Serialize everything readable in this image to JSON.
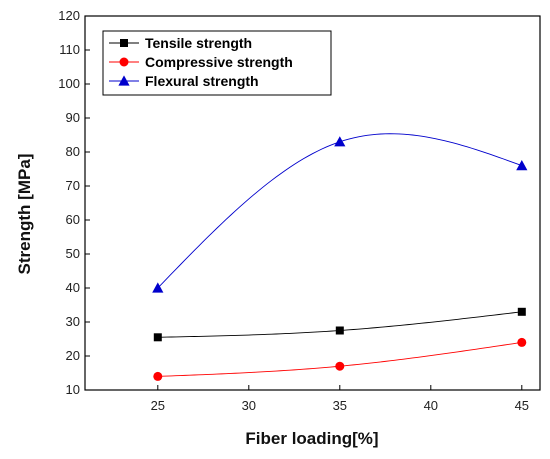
{
  "chart_data": {
    "type": "line",
    "title": "",
    "xlabel": "Fiber loading[%]",
    "ylabel": "Strength [MPa]",
    "xlim": [
      21,
      46
    ],
    "ylim": [
      10,
      120
    ],
    "xticks": [
      25,
      30,
      35,
      40,
      45
    ],
    "yticks": [
      10,
      20,
      30,
      40,
      50,
      60,
      70,
      80,
      90,
      100,
      110,
      120
    ],
    "x": [
      25,
      35,
      45
    ],
    "series": [
      {
        "name": "Tensile strength",
        "values": [
          25.5,
          27.5,
          33
        ],
        "color": "#000000",
        "marker": "square"
      },
      {
        "name": "Compressive strength",
        "values": [
          14,
          17,
          24
        ],
        "color": "#ff0000",
        "marker": "circle"
      },
      {
        "name": "Flexural strength",
        "values": [
          40,
          83,
          76
        ],
        "color": "#0000cc",
        "marker": "triangle"
      }
    ],
    "curve": "smooth spline",
    "grid": false,
    "legend_position": "top-left"
  }
}
